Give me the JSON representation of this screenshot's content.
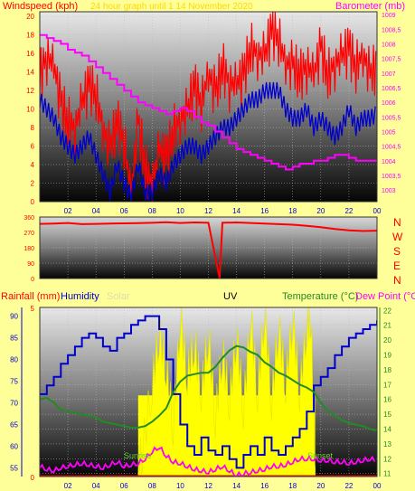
{
  "colors": {
    "background": "#FFFF99",
    "wind": "#FF0000",
    "wind_avg": "#0000CC",
    "barometer": "#FF00FF",
    "direction": "#FF0000",
    "humidity": "#0000CC",
    "temperature": "#228B22",
    "dew_point": "#FF00FF",
    "solar": "#FFFF00",
    "rainfall": "#FF0000",
    "uv": "#000000",
    "panel_title": "#FFD700"
  },
  "chart_data": [
    {
      "type": "line",
      "title": "24 hour graph until 1 14 November 2020",
      "legend": [
        "Windspeed (kph)",
        "Barometer (mb)"
      ],
      "x_ticks": [
        "02",
        "04",
        "06",
        "08",
        "10",
        "12",
        "14",
        "16",
        "18",
        "20",
        "22",
        "00"
      ],
      "y_left": {
        "label": "Windspeed (kph)",
        "ticks": [
          0,
          2,
          4,
          6,
          8,
          10,
          12,
          14,
          16,
          18,
          20
        ],
        "ylim": [
          0,
          20.5
        ]
      },
      "y_right": {
        "label": "Barometer (mb)",
        "ticks": [
          "1003",
          "1003,5",
          "1004",
          "1004,5",
          "1005",
          "1005,5",
          "1006",
          "1006,5",
          "1007",
          "1007,5",
          "1008",
          "1008,5",
          "1009"
        ],
        "ylim": [
          1002.6,
          1009.1
        ]
      },
      "x_hours": [
        0,
        0.5,
        1,
        1.5,
        2,
        2.5,
        3,
        3.5,
        4,
        4.5,
        5,
        5.5,
        6,
        6.5,
        7,
        7.5,
        8,
        8.5,
        9,
        9.5,
        10,
        10.5,
        11,
        11.5,
        12,
        12.5,
        13,
        13.5,
        14,
        14.5,
        15,
        15.5,
        16,
        16.5,
        17,
        17.5,
        18,
        18.5,
        19,
        19.5,
        20,
        20.5,
        21,
        21.5,
        22,
        22.5,
        23,
        23.5,
        24
      ],
      "series": [
        {
          "name": "Windspeed (kph)",
          "axis": "left",
          "values": [
            14,
            16,
            15,
            11,
            9,
            8,
            11,
            13,
            12,
            8,
            6,
            9,
            7,
            1,
            9,
            4,
            2,
            6,
            5,
            8,
            9,
            10,
            13,
            11,
            14,
            12,
            15,
            13,
            13,
            14,
            17,
            16,
            16,
            19,
            18,
            15,
            15,
            14,
            15,
            14,
            17,
            14,
            15,
            16,
            17,
            15,
            16,
            14,
            15
          ]
        },
        {
          "name": "Windspeed (kph)",
          "axis": "left",
          "values": [
            11,
            10,
            9,
            7,
            6,
            5,
            6,
            7,
            5,
            3,
            1,
            4,
            2,
            0.5,
            4,
            1,
            1,
            3,
            2,
            4,
            5,
            6,
            6,
            5,
            6,
            7,
            8,
            8,
            9,
            10,
            11,
            11,
            12,
            12,
            12,
            10,
            9,
            9,
            10,
            8,
            9,
            8,
            7,
            8,
            10,
            8,
            9,
            9,
            9.5
          ]
        },
        {
          "name": "Barometer (mb)",
          "axis": "right",
          "values": [
            1008.3,
            1008.2,
            1008.1,
            1008.0,
            1007.8,
            1007.7,
            1007.6,
            1007.4,
            1007.2,
            1007.0,
            1006.8,
            1006.6,
            1006.4,
            1006.2,
            1006.0,
            1005.9,
            1005.8,
            1005.7,
            1005.6,
            1005.7,
            1005.8,
            1005.7,
            1005.5,
            1005.3,
            1005.2,
            1005.0,
            1004.8,
            1004.6,
            1004.4,
            1004.3,
            1004.2,
            1004.1,
            1004.0,
            1003.9,
            1003.8,
            1003.7,
            1003.8,
            1003.9,
            1003.9,
            1004.0,
            1004.0,
            1004.1,
            1004.2,
            1004.2,
            1004.1,
            1004.0,
            1004.0,
            1004.0,
            1004.0
          ]
        }
      ]
    },
    {
      "type": "line",
      "legend": [
        "N",
        "W",
        "S",
        "E",
        "N"
      ],
      "y_ticks": [
        0,
        90,
        180,
        270,
        360
      ],
      "ylim": [
        0,
        360
      ],
      "x_hours": [
        0,
        1,
        2,
        3,
        4,
        5,
        6,
        7,
        8,
        9,
        10,
        11,
        12,
        12.8,
        13,
        14,
        15,
        16,
        17,
        18,
        19,
        20,
        21,
        22,
        23,
        24
      ],
      "series": [
        {
          "name": "Wind direction",
          "values": [
            320,
            322,
            325,
            318,
            320,
            322,
            323,
            324,
            326,
            330,
            325,
            328,
            326,
            0,
            326,
            328,
            325,
            322,
            318,
            315,
            308,
            300,
            290,
            282,
            278,
            280
          ]
        }
      ]
    },
    {
      "type": "line",
      "legend": [
        "Rainfall (mm)",
        "Humidity",
        "Solar",
        "UV",
        "Temperature (°C)",
        "Dew Point (°C)"
      ],
      "x_ticks": [
        "02",
        "04",
        "06",
        "08",
        "10",
        "12",
        "14",
        "16",
        "18",
        "20",
        "22",
        "00"
      ],
      "annotations": [
        "Sunrise",
        "Sunset"
      ],
      "y_left_humidity": {
        "ticks": [
          55,
          60,
          65,
          70,
          75,
          80,
          85,
          90
        ],
        "ylim": [
          53,
          92
        ]
      },
      "y_left_rain": {
        "ticks": [
          0,
          5
        ],
        "ylim": [
          0,
          5
        ]
      },
      "y_right_temperature": {
        "ticks": [
          11,
          12,
          13,
          14,
          15,
          16,
          17,
          18,
          19,
          20,
          21,
          22
        ],
        "ylim": [
          10.8,
          22.2
        ]
      },
      "x_hours": [
        0,
        0.5,
        1,
        1.5,
        2,
        2.5,
        3,
        3.5,
        4,
        4.5,
        5,
        5.5,
        6,
        6.5,
        7,
        7.5,
        8,
        8.5,
        9,
        9.5,
        10,
        10.5,
        11,
        11.5,
        12,
        12.5,
        13,
        13.5,
        14,
        14.5,
        15,
        15.5,
        16,
        16.5,
        17,
        17.5,
        18,
        18.5,
        19,
        19.5,
        20,
        20.5,
        21,
        21.5,
        22,
        22.5,
        23,
        23.5,
        24
      ],
      "series": [
        {
          "name": "Humidity",
          "axis": "humidity",
          "values": [
            72,
            74,
            76,
            79,
            81,
            83,
            85,
            86,
            85,
            83,
            82,
            85,
            86,
            88,
            89,
            90,
            90,
            87,
            80,
            72,
            65,
            60,
            58,
            62,
            59,
            58,
            60,
            57,
            55,
            58,
            60,
            58,
            62,
            59,
            58,
            60,
            62,
            64,
            68,
            74,
            76,
            78,
            81,
            83,
            85,
            86,
            87,
            88,
            89
          ]
        },
        {
          "name": "Temperature (°C)",
          "axis": "temperature",
          "values": [
            16.0,
            16.1,
            15.8,
            15.3,
            15.2,
            15.1,
            15.0,
            14.9,
            14.8,
            14.5,
            14.4,
            14.3,
            14.2,
            14.1,
            14.1,
            14.2,
            14.5,
            14.9,
            15.4,
            16.5,
            17.2,
            17.6,
            17.7,
            17.8,
            17.8,
            18.2,
            18.8,
            19.3,
            19.6,
            19.5,
            19.2,
            19.0,
            18.5,
            18.2,
            17.8,
            17.6,
            17.3,
            17.0,
            16.8,
            16.5,
            15.8,
            15.2,
            14.9,
            14.6,
            14.4,
            14.3,
            14.2,
            14.0,
            13.9
          ]
        },
        {
          "name": "Dew Point (°C)",
          "axis": "temperature",
          "values": [
            11.5,
            11.3,
            11.2,
            11.4,
            11.5,
            11.6,
            11.7,
            11.6,
            11.5,
            11.4,
            11.6,
            11.8,
            11.5,
            11.6,
            11.7,
            12.0,
            12.5,
            12.8,
            12.2,
            11.8,
            11.7,
            11.5,
            11.3,
            11.2,
            11.1,
            11.3,
            11.5,
            11.2,
            10.9,
            11.0,
            11.1,
            11.2,
            11.3,
            11.5,
            11.5,
            11.6,
            11.8,
            12.0,
            12.0,
            12.0,
            11.9,
            11.9,
            11.8,
            11.8,
            11.7,
            11.8,
            11.9,
            12.0,
            11.9
          ]
        },
        {
          "name": "Solar",
          "axis": "hidden",
          "x_hours": [
            7,
            7.3,
            8,
            8.5,
            9,
            9.5,
            10,
            10.5,
            11,
            11.5,
            12,
            12.5,
            13,
            13.5,
            14,
            14.5,
            15,
            15.5,
            16,
            16.5,
            17,
            17.5,
            18,
            18.5,
            19,
            19.3,
            19.6
          ],
          "values": [
            0.05,
            0.15,
            0.55,
            0.85,
            0.65,
            0.3,
            0.95,
            0.6,
            0.8,
            0.5,
            0.85,
            0.35,
            0.75,
            0.45,
            0.85,
            0.4,
            0.95,
            0.5,
            0.98,
            0.45,
            0.9,
            0.55,
            0.95,
            0.5,
            0.9,
            0.95,
            0.05
          ]
        },
        {
          "name": "Rainfall (mm)",
          "axis": "rain",
          "values": [
            0,
            0,
            0,
            0,
            0,
            0,
            0,
            0,
            0,
            0,
            0,
            0,
            0,
            0,
            0,
            0,
            0,
            0,
            0,
            0,
            0,
            0,
            0,
            0,
            0,
            0,
            0,
            0,
            0,
            0,
            0,
            0,
            0,
            0,
            0,
            0,
            0,
            0,
            0,
            0,
            0,
            0,
            0,
            0,
            0,
            0,
            0,
            0,
            0
          ]
        }
      ]
    }
  ]
}
